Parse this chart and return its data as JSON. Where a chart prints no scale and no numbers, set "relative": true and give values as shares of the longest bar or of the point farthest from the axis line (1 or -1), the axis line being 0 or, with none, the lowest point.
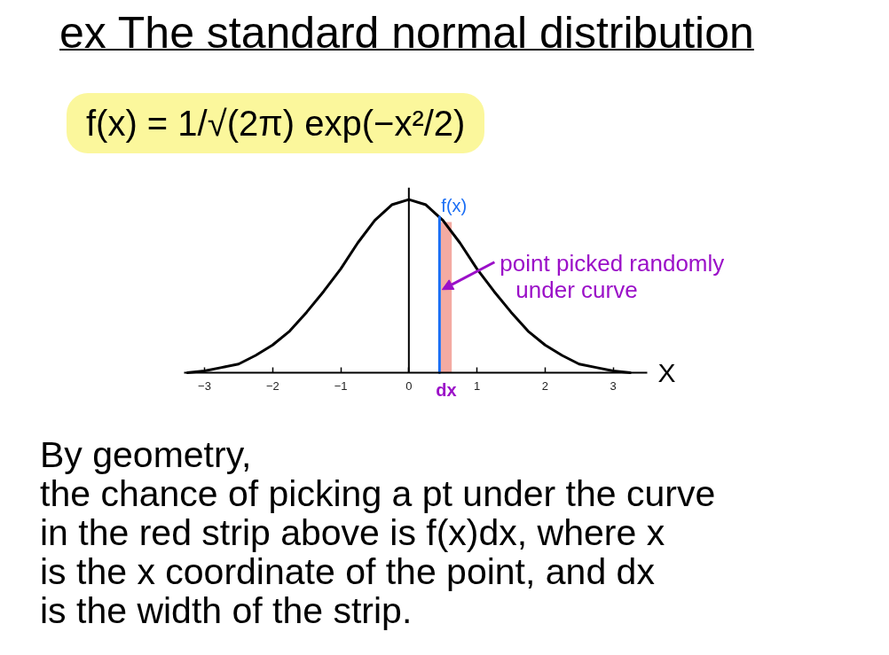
{
  "chart_data": {
    "type": "line",
    "title": "ex The standard normal distribution",
    "subtitle": "f(x) = 1/√(2π) exp(−x²/2)",
    "xlabel": "X",
    "relative": true,
    "xlim": [
      -3.3,
      3.5
    ],
    "xticks": [
      -3,
      -2,
      -1,
      0,
      1,
      2,
      3
    ],
    "series": [
      {
        "type": "area",
        "color": "#f4aba2",
        "x": [
          0.47,
          0.63
        ],
        "values": [
          0.87,
          0.87
        ]
      },
      {
        "color": "#000000",
        "x": [
          -3.25,
          -3,
          -2.75,
          -2.5,
          -2.25,
          -2,
          -1.75,
          -1.5,
          -1.25,
          -1,
          -0.75,
          -0.5,
          -0.25,
          0,
          0.25,
          0.5,
          0.75,
          1,
          1.25,
          1.5,
          1.75,
          2,
          2.25,
          2.5,
          2.75,
          3,
          3.25
        ],
        "values": [
          0.0,
          0.01,
          0.03,
          0.05,
          0.1,
          0.16,
          0.24,
          0.35,
          0.47,
          0.6,
          0.75,
          0.88,
          0.97,
          1,
          0.97,
          0.88,
          0.75,
          0.6,
          0.47,
          0.35,
          0.24,
          0.16,
          0.1,
          0.05,
          0.03,
          0.01,
          0.0
        ]
      },
      {
        "name": "f(x)",
        "color": "#1a6ef5",
        "x": [
          0.45,
          0.45
        ],
        "values": [
          0,
          0.9
        ]
      }
    ],
    "ref_lines": [
      {
        "axis": "x",
        "value": 0,
        "color": "#000000"
      }
    ],
    "annotations": [
      {
        "text": "point picked randomly\nunder curve",
        "x": 0.45,
        "y": 0.48
      },
      {
        "text": "dx",
        "x": 0.55,
        "y": 0
      },
      "By geometry,\nthe chance of picking a pt under the curve\nin the red strip above is f(x)dx, where x\nis the x coordinate of the point, and dx\nis the width of the strip."
    ]
  }
}
